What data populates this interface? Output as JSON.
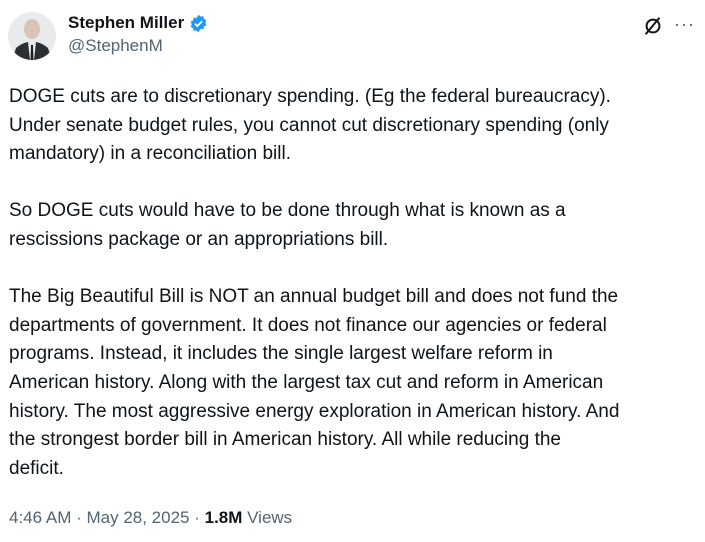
{
  "author": {
    "name": "Stephen Miller",
    "handle": "@StephenM",
    "verified": true,
    "badge_color": "#1d9bf0"
  },
  "icons": {
    "grok": "grok-icon",
    "more": "more-icon"
  },
  "more_label": "···",
  "paragraphs": [
    [
      "DOGE cuts are to discretionary spending. (Eg the federal bureaucracy).",
      "Under senate budget rules, you cannot cut discretionary spending (only",
      "mandatory) in a reconciliation bill."
    ],
    [
      "So DOGE cuts would have to be done through what is known as a",
      "rescissions package or an appropriations bill."
    ],
    [
      "The Big Beautiful Bill is NOT an annual budget bill and does not fund the",
      "departments of government. It does not finance our agencies or federal",
      "programs. Instead, it includes the single largest welfare reform in",
      "American history. Along with the largest tax cut and reform in American",
      "history. The most aggressive energy exploration in American history. And",
      "the strongest border bill in American history. All while reducing the",
      "deficit."
    ]
  ],
  "meta": {
    "time": "4:46 AM",
    "sep": " · ",
    "date": "May 28, 2025",
    "views_count": "1.8M",
    "views_label": " Views"
  }
}
